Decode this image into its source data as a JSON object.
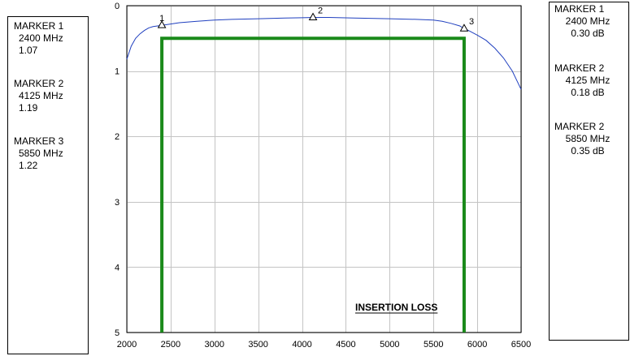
{
  "left_panel": {
    "markers": [
      {
        "title": "MARKER 1",
        "freq": "2400 MHz",
        "value": "1.07"
      },
      {
        "title": "MARKER 2",
        "freq": "4125 MHz",
        "value": "1.19"
      },
      {
        "title": "MARKER 3",
        "freq": "5850 MHz",
        "value": "1.22"
      }
    ]
  },
  "right_panel": {
    "markers": [
      {
        "title": "MARKER 1",
        "freq": "2400 MHz",
        "value": "0.30 dB"
      },
      {
        "title": "MARKER 2",
        "freq": "4125 MHz",
        "value": "0.18 dB"
      },
      {
        "title": "MARKER 2",
        "freq": "5850 MHz",
        "value": "0.35 dB"
      }
    ]
  },
  "chart_data": {
    "type": "line",
    "title": "INSERTION LOSS",
    "xlabel": "",
    "ylabel": "",
    "xlim": [
      2000,
      6500
    ],
    "ylim": [
      0,
      5
    ],
    "y_inverted": true,
    "x_ticks": [
      2000,
      2500,
      3000,
      3500,
      4000,
      4500,
      5000,
      5500,
      6000,
      6500
    ],
    "y_ticks": [
      0,
      1,
      2,
      3,
      4,
      5
    ],
    "grid": true,
    "colors": {
      "trace": "#1f3fbf",
      "limit": "#1a8a1a"
    },
    "series": [
      {
        "x": [
          2000,
          2050,
          2100,
          2150,
          2200,
          2250,
          2300,
          2350,
          2400,
          2500,
          2600,
          2800,
          3000,
          3200,
          3500,
          3800,
          4000,
          4125,
          4300,
          4600,
          5000,
          5300,
          5500,
          5600,
          5700,
          5800,
          5850,
          5900,
          6000,
          6100,
          6200,
          6300,
          6400,
          6500
        ],
        "y": [
          0.82,
          0.62,
          0.5,
          0.43,
          0.38,
          0.34,
          0.32,
          0.31,
          0.3,
          0.28,
          0.26,
          0.24,
          0.22,
          0.21,
          0.2,
          0.19,
          0.185,
          0.18,
          0.18,
          0.19,
          0.2,
          0.21,
          0.22,
          0.24,
          0.27,
          0.31,
          0.35,
          0.38,
          0.45,
          0.53,
          0.65,
          0.8,
          1.0,
          1.28
        ]
      }
    ],
    "limit_line": {
      "x_start": 2400,
      "x_end": 5850,
      "y": 0.5
    },
    "markers": [
      {
        "label": "1",
        "x": 2400,
        "y": 0.3
      },
      {
        "label": "2",
        "x": 4125,
        "y": 0.18
      },
      {
        "label": "3",
        "x": 5850,
        "y": 0.35
      }
    ]
  }
}
